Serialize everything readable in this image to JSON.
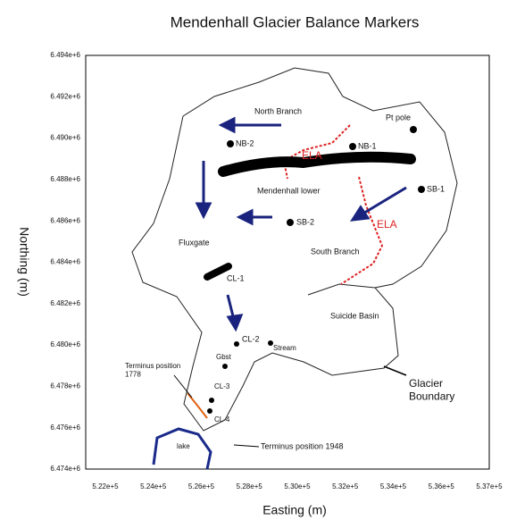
{
  "title": "Mendenhall Glacier Balance Markers",
  "x_axis": {
    "label": "Easting (m)",
    "ticks": [
      "5.22e+5",
      "5.24e+5",
      "5.26e+5",
      "5.28e+5",
      "5.30e+5",
      "5.32e+5",
      "5.34e+5",
      "5.36e+5",
      "5.37e+5"
    ]
  },
  "y_axis": {
    "label": "Northing (m)",
    "ticks": [
      "6.494e+6",
      "6.492e+6",
      "6.490e+6",
      "6.488e+6",
      "6.486e+6",
      "6.484e+6",
      "6.482e+6",
      "6.480e+6",
      "6.478e+6",
      "6.476e+6",
      "6.474e+6"
    ]
  },
  "labels": [
    "North Branch",
    "ELA",
    "NB-2",
    "NB-1",
    "Pt pole",
    "SB-1",
    "Mendenhall lower",
    "SB-2",
    "ELA",
    "South Branch",
    "Fluxgate",
    "CL-1",
    "Suicide Basin",
    "CL-2",
    "Stream",
    "Glacier Boundary",
    "Gbst",
    "Terminus position 1778",
    "CL-3",
    "CL-4",
    "lake",
    "Terminus position 1948"
  ]
}
